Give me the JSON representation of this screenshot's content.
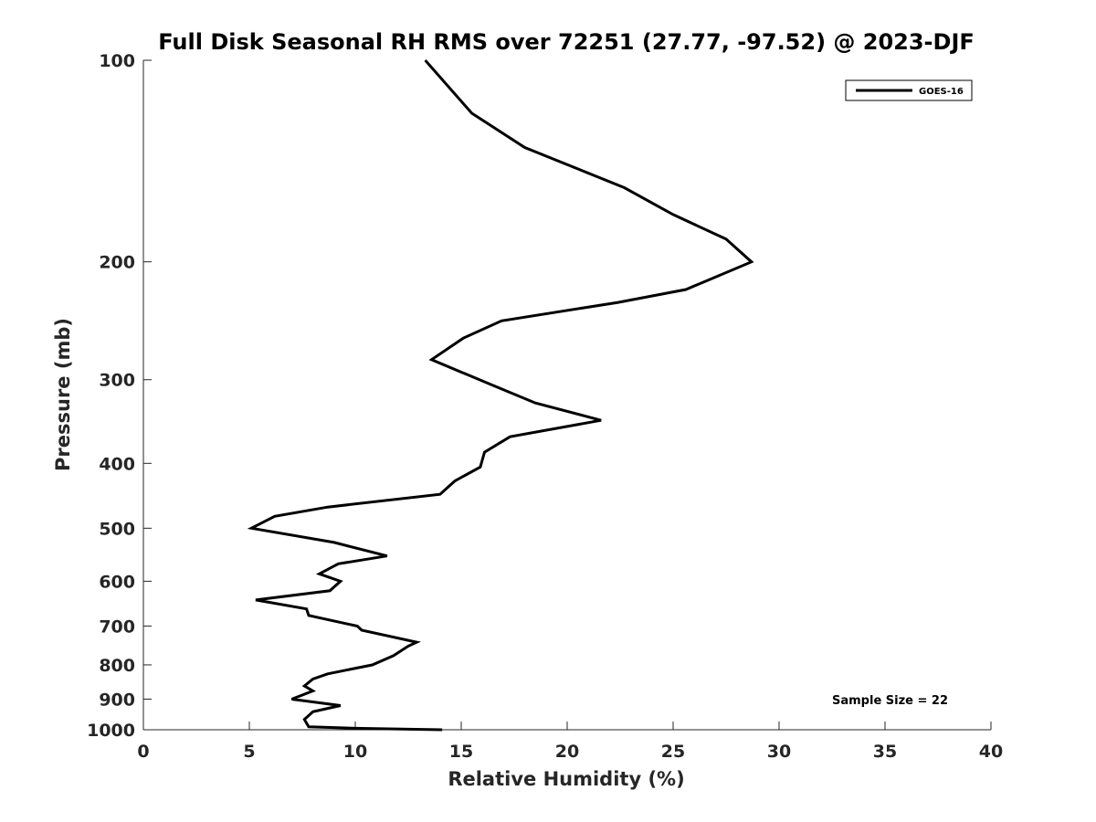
{
  "chart_data": {
    "type": "line",
    "title": "Full Disk Seasonal RH RMS over 72251 (27.77, -97.52) @ 2023-DJF",
    "xlabel": "Relative Humidity (%)",
    "ylabel": "Pressure (mb)",
    "xlim": [
      0,
      40
    ],
    "ylim": [
      100,
      1000
    ],
    "yscale": "log",
    "y_reversed": true,
    "grid": false,
    "x_ticks": [
      0,
      5,
      10,
      15,
      20,
      25,
      30,
      35,
      40
    ],
    "y_ticks": [
      100,
      200,
      300,
      400,
      500,
      600,
      700,
      800,
      900,
      1000
    ],
    "legend": {
      "placement": "top-right",
      "entries": [
        "GOES-16"
      ]
    },
    "annotation": "Sample Size = 22",
    "series": [
      {
        "name": "GOES-16",
        "color": "#000000",
        "points": [
          {
            "x": 14.1,
            "p": 1000
          },
          {
            "x": 10.0,
            "p": 995
          },
          {
            "x": 7.8,
            "p": 990
          },
          {
            "x": 7.6,
            "p": 965
          },
          {
            "x": 8.0,
            "p": 940
          },
          {
            "x": 9.3,
            "p": 920
          },
          {
            "x": 7.0,
            "p": 900
          },
          {
            "x": 8.0,
            "p": 875
          },
          {
            "x": 7.6,
            "p": 860
          },
          {
            "x": 8.0,
            "p": 840
          },
          {
            "x": 8.7,
            "p": 825
          },
          {
            "x": 10.8,
            "p": 800
          },
          {
            "x": 11.8,
            "p": 775
          },
          {
            "x": 12.5,
            "p": 750
          },
          {
            "x": 12.9,
            "p": 740
          },
          {
            "x": 10.3,
            "p": 710
          },
          {
            "x": 10.1,
            "p": 700
          },
          {
            "x": 7.8,
            "p": 675
          },
          {
            "x": 7.7,
            "p": 660
          },
          {
            "x": 5.3,
            "p": 640
          },
          {
            "x": 8.8,
            "p": 620
          },
          {
            "x": 9.3,
            "p": 600
          },
          {
            "x": 8.3,
            "p": 585
          },
          {
            "x": 9.2,
            "p": 565
          },
          {
            "x": 11.5,
            "p": 550
          },
          {
            "x": 9.0,
            "p": 525
          },
          {
            "x": 5.1,
            "p": 500
          },
          {
            "x": 6.2,
            "p": 480
          },
          {
            "x": 8.7,
            "p": 465
          },
          {
            "x": 14.0,
            "p": 445
          },
          {
            "x": 14.7,
            "p": 425
          },
          {
            "x": 15.9,
            "p": 405
          },
          {
            "x": 16.1,
            "p": 385
          },
          {
            "x": 17.3,
            "p": 365
          },
          {
            "x": 21.6,
            "p": 345
          },
          {
            "x": 18.5,
            "p": 325
          },
          {
            "x": 16.4,
            "p": 305
          },
          {
            "x": 13.6,
            "p": 280
          },
          {
            "x": 15.1,
            "p": 260
          },
          {
            "x": 16.9,
            "p": 245
          },
          {
            "x": 22.4,
            "p": 230
          },
          {
            "x": 25.6,
            "p": 220
          },
          {
            "x": 28.7,
            "p": 200
          },
          {
            "x": 27.5,
            "p": 185
          },
          {
            "x": 25.0,
            "p": 170
          },
          {
            "x": 22.7,
            "p": 155
          },
          {
            "x": 18.0,
            "p": 135
          },
          {
            "x": 15.5,
            "p": 120
          },
          {
            "x": 13.3,
            "p": 100
          }
        ]
      }
    ]
  }
}
